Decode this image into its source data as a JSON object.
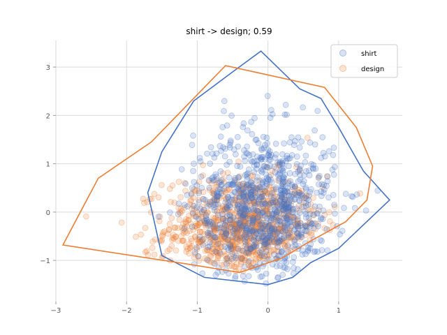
{
  "chart_data": {
    "type": "scatter",
    "title": "shirt -> design; 0.59",
    "xlabel": "",
    "ylabel": "",
    "xlim": [
      -3.0,
      1.9
    ],
    "ylim": [
      -1.85,
      3.55
    ],
    "xticks": [
      -3,
      -2,
      -1,
      0,
      1
    ],
    "yticks": [
      -1,
      0,
      1,
      2,
      3
    ],
    "xtick_labels": [
      "−3",
      "−2",
      "−1",
      "0",
      "1"
    ],
    "ytick_labels": [
      "−1",
      "0",
      "1",
      "2",
      "3"
    ],
    "grid": true,
    "legend_position": "top-right",
    "series": [
      {
        "name": "shirt",
        "color": "#4472c4",
        "point_count": 900,
        "center": [
          -0.05,
          0.1
        ],
        "spread": [
          0.5,
          0.8
        ],
        "hull": [
          [
            -0.1,
            3.33
          ],
          [
            0.45,
            2.55
          ],
          [
            0.75,
            2.35
          ],
          [
            1.0,
            1.75
          ],
          [
            1.35,
            0.85
          ],
          [
            1.72,
            0.25
          ],
          [
            1.0,
            -0.75
          ],
          [
            0.6,
            -1.05
          ],
          [
            0.35,
            -1.35
          ],
          [
            0.0,
            -1.5
          ],
          [
            -0.9,
            -1.35
          ],
          [
            -1.5,
            -0.9
          ],
          [
            -1.7,
            0.4
          ],
          [
            -1.5,
            1.25
          ],
          [
            -1.05,
            2.3
          ],
          [
            -0.5,
            2.9
          ]
        ]
      },
      {
        "name": "design",
        "color": "#ed7d31",
        "point_count": 900,
        "center": [
          -0.35,
          -0.35
        ],
        "spread": [
          0.55,
          0.55
        ],
        "hull": [
          [
            -0.6,
            3.03
          ],
          [
            0.8,
            2.58
          ],
          [
            1.25,
            1.75
          ],
          [
            1.48,
            0.95
          ],
          [
            1.4,
            0.25
          ],
          [
            1.1,
            -0.2
          ],
          [
            0.6,
            -0.6
          ],
          [
            0.2,
            -0.95
          ],
          [
            -0.4,
            -1.25
          ],
          [
            -1.25,
            -1.05
          ],
          [
            -2.9,
            -0.68
          ],
          [
            -2.4,
            0.7
          ],
          [
            -1.65,
            1.45
          ]
        ]
      }
    ]
  }
}
